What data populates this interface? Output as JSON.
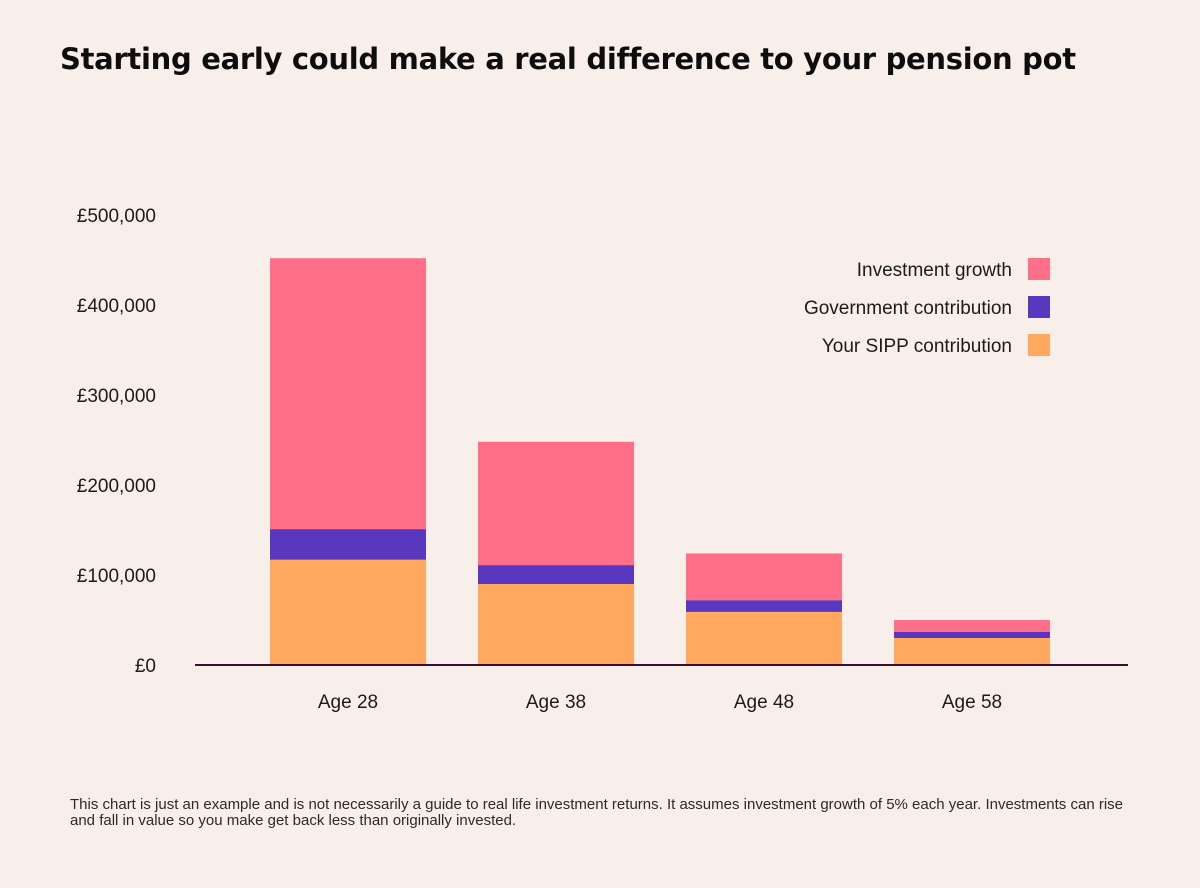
{
  "title": "Starting early could make a real difference to your pension pot",
  "footnote": "This chart is just an example and is not necessarily a guide to real life investment returns. It assumes investment growth of 5% each year. Investments can rise and fall in value so you make get back less than originally invested.",
  "colors": {
    "background": "#f9efea",
    "investment_growth": "#ff7088",
    "government_contribution": "#5a37bf",
    "sipp_contribution": "#ffa85e",
    "axis": "#3a1030"
  },
  "chart_data": {
    "type": "bar",
    "stacked": true,
    "title": "Starting early could make a real difference to your pension pot",
    "xlabel": "",
    "ylabel": "",
    "ylim": [
      0,
      500000
    ],
    "yticks": [
      0,
      100000,
      200000,
      300000,
      400000,
      500000
    ],
    "ytick_labels": [
      "£0",
      "£100,000",
      "£200,000",
      "£300,000",
      "£400,000",
      "£500,000"
    ],
    "categories": [
      "Age 28",
      "Age 38",
      "Age 48",
      "Age 58"
    ],
    "series": [
      {
        "name": "Your SIPP contribution",
        "color": "#ffa85e",
        "values": [
          117000,
          90000,
          59000,
          30000
        ]
      },
      {
        "name": "Government contribution",
        "color": "#5a37bf",
        "values": [
          34000,
          21000,
          13000,
          7000
        ]
      },
      {
        "name": "Investment growth",
        "color": "#ff7088",
        "values": [
          301000,
          137000,
          52000,
          13000
        ]
      }
    ],
    "legend": {
      "position": "top-right",
      "order": [
        "Investment growth",
        "Government contribution",
        "Your SIPP contribution"
      ]
    },
    "grid": false
  }
}
